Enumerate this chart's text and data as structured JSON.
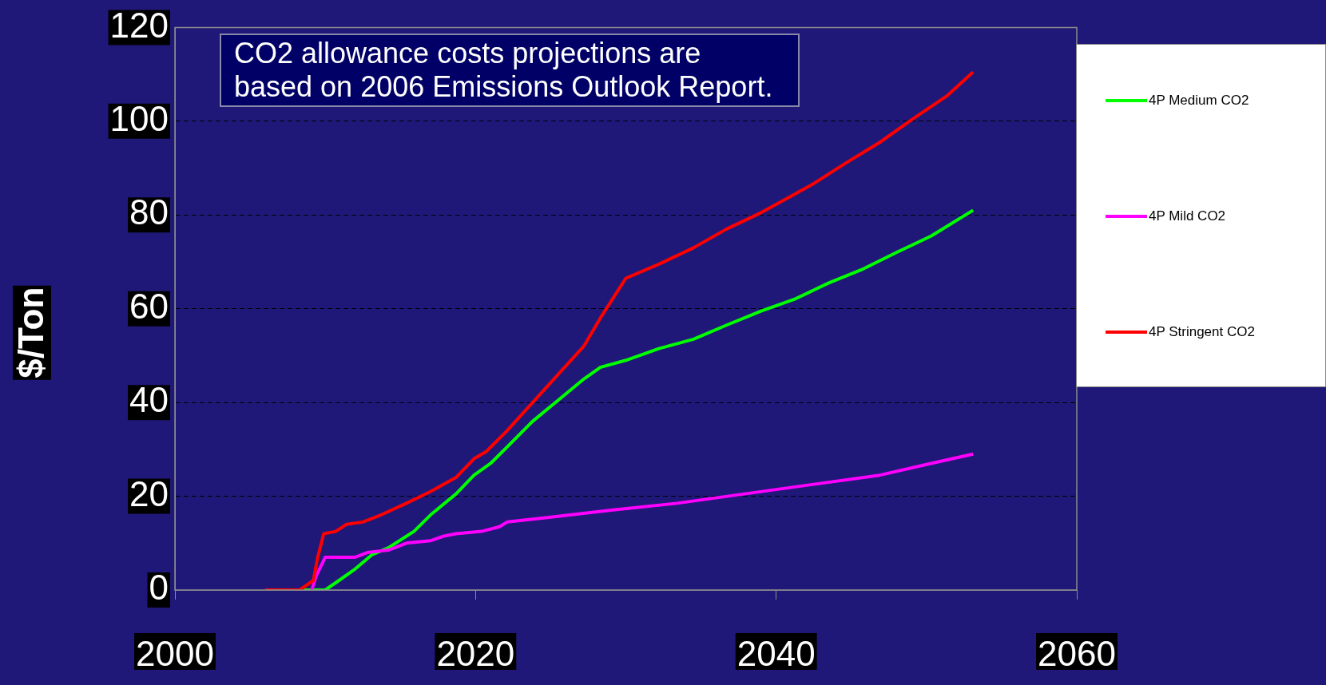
{
  "chart_data": {
    "type": "line",
    "ylabel": "$/Ton",
    "annotations": [
      "CO2 allowance costs projections are based on 2006 Emissions Outlook Report."
    ],
    "xlim": [
      2000,
      2060
    ],
    "xticks": [
      2000,
      2020,
      2040,
      2060
    ],
    "ylim": [
      0,
      120
    ],
    "yticks": [
      0,
      20,
      40,
      60,
      80,
      100,
      120
    ],
    "grid": "y",
    "legend": "right",
    "marker": "none",
    "series": [
      {
        "name": "4P Medium CO2",
        "color": "#00ff00",
        "x": [
          2008.6,
          2010,
          2010.9,
          2012,
          2013.1,
          2014.2,
          2015.9,
          2017,
          2018.7,
          2019.9,
          2021,
          2022.1,
          2023.8,
          2025.5,
          2027.2,
          2028.3,
          2030,
          2032.2,
          2034.5,
          2036.7,
          2039,
          2041.2,
          2043.5,
          2045.8,
          2048,
          2050.3,
          2053.1
        ],
        "values": [
          0,
          0,
          2,
          4.5,
          7.5,
          9,
          12.5,
          16,
          20.5,
          24.5,
          27,
          30.5,
          36,
          40.5,
          45,
          47.5,
          49,
          51.5,
          53.5,
          56.5,
          59.5,
          62,
          65.5,
          68.5,
          72,
          75.5,
          81
        ]
      },
      {
        "name": "4P Mild CO2",
        "color": "#ff00ff",
        "x": [
          2009.1,
          2009.4,
          2010,
          2010.9,
          2012,
          2012.8,
          2014.2,
          2015.4,
          2017,
          2017.9,
          2018.7,
          2020.4,
          2021.6,
          2022.1,
          2024.9,
          2028.9,
          2033.4,
          2037.9,
          2042.4,
          2046.9,
          2050.3,
          2053.1
        ],
        "values": [
          0,
          3,
          7,
          7,
          7,
          8,
          8.5,
          10,
          10.5,
          11.5,
          12,
          12.5,
          13.5,
          14.5,
          15.5,
          17,
          18.5,
          20.5,
          22.5,
          24.5,
          27,
          29
        ]
      },
      {
        "name": "4P Stringent CO2",
        "color": "#ff0000",
        "x": [
          2006,
          2008.3,
          2009.2,
          2009.5,
          2009.9,
          2010.7,
          2011.4,
          2012.5,
          2013.7,
          2015.4,
          2017,
          2018.7,
          2019.9,
          2020.7,
          2022.1,
          2023.8,
          2025.5,
          2027.2,
          2028.3,
          2030,
          2032.2,
          2034.5,
          2036.7,
          2039,
          2040.7,
          2042.4,
          2044.6,
          2046.9,
          2049.1,
          2051.4,
          2053.1
        ],
        "values": [
          0,
          0,
          2,
          7,
          12,
          12.5,
          14,
          14.5,
          16,
          18.5,
          21,
          24,
          28,
          29.5,
          34,
          40,
          46,
          52,
          58,
          66.5,
          69.5,
          73,
          77,
          80.5,
          83.5,
          86.5,
          91,
          95.5,
          100.5,
          105.5,
          110.5
        ]
      }
    ]
  }
}
